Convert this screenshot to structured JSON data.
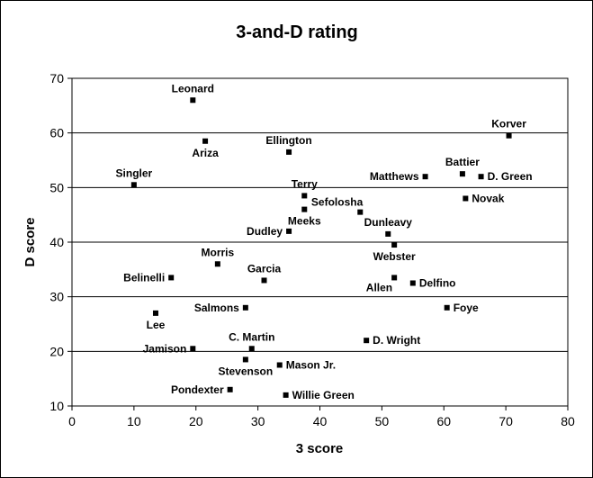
{
  "chart_data": {
    "type": "scatter",
    "title": "3-and-D rating",
    "xlabel": "3 score",
    "ylabel": "D score",
    "xlim": [
      0,
      80
    ],
    "ylim": [
      10,
      70
    ],
    "x_ticks": [
      0,
      10,
      20,
      30,
      40,
      50,
      60,
      70,
      80
    ],
    "y_ticks": [
      10,
      20,
      30,
      40,
      50,
      60,
      70
    ],
    "grid": "horizontal",
    "marker_color": "#000000",
    "points": [
      {
        "label": "Leonard",
        "x": 19.5,
        "y": 66,
        "pos": "above"
      },
      {
        "label": "Ariza",
        "x": 21.5,
        "y": 58.5,
        "pos": "below"
      },
      {
        "label": "Ellington",
        "x": 35,
        "y": 56.5,
        "pos": "above"
      },
      {
        "label": "Korver",
        "x": 70.5,
        "y": 59.5,
        "pos": "above"
      },
      {
        "label": "Singler",
        "x": 10,
        "y": 50.5,
        "pos": "above"
      },
      {
        "label": "Battier",
        "x": 63,
        "y": 52.5,
        "pos": "above"
      },
      {
        "label": "Matthews",
        "x": 57,
        "y": 52,
        "pos": "left"
      },
      {
        "label": "D. Green",
        "x": 66,
        "y": 52,
        "pos": "right"
      },
      {
        "label": "Novak",
        "x": 63.5,
        "y": 48,
        "pos": "right"
      },
      {
        "label": "Terry",
        "x": 37.5,
        "y": 48.5,
        "pos": "above"
      },
      {
        "label": "Sefolosha",
        "x": 46.5,
        "y": 45.5,
        "pos": "aboveleft"
      },
      {
        "label": "Meeks",
        "x": 37.5,
        "y": 46,
        "pos": "below"
      },
      {
        "label": "Dunleavy",
        "x": 51,
        "y": 41.5,
        "pos": "above"
      },
      {
        "label": "Dudley",
        "x": 35,
        "y": 42,
        "pos": "left"
      },
      {
        "label": "Webster",
        "x": 52,
        "y": 39.5,
        "pos": "below"
      },
      {
        "label": "Morris",
        "x": 23.5,
        "y": 36,
        "pos": "above"
      },
      {
        "label": "Garcia",
        "x": 31,
        "y": 33,
        "pos": "above"
      },
      {
        "label": "Belinelli",
        "x": 16,
        "y": 33.5,
        "pos": "left"
      },
      {
        "label": "Allen",
        "x": 52,
        "y": 33.5,
        "pos": "belowleft"
      },
      {
        "label": "Delfino",
        "x": 55,
        "y": 32.5,
        "pos": "right"
      },
      {
        "label": "Salmons",
        "x": 28,
        "y": 28,
        "pos": "left"
      },
      {
        "label": "Foye",
        "x": 60.5,
        "y": 28,
        "pos": "right"
      },
      {
        "label": "Lee",
        "x": 13.5,
        "y": 27,
        "pos": "below"
      },
      {
        "label": "C. Martin",
        "x": 29,
        "y": 20.5,
        "pos": "above"
      },
      {
        "label": "D. Wright",
        "x": 47.5,
        "y": 22,
        "pos": "right"
      },
      {
        "label": "Jamison",
        "x": 19.5,
        "y": 20.5,
        "pos": "left"
      },
      {
        "label": "Stevenson",
        "x": 28,
        "y": 18.5,
        "pos": "below"
      },
      {
        "label": "Mason Jr.",
        "x": 33.5,
        "y": 17.5,
        "pos": "right"
      },
      {
        "label": "Pondexter",
        "x": 25.5,
        "y": 13,
        "pos": "left"
      },
      {
        "label": "Willie Green",
        "x": 34.5,
        "y": 12,
        "pos": "right"
      }
    ]
  }
}
